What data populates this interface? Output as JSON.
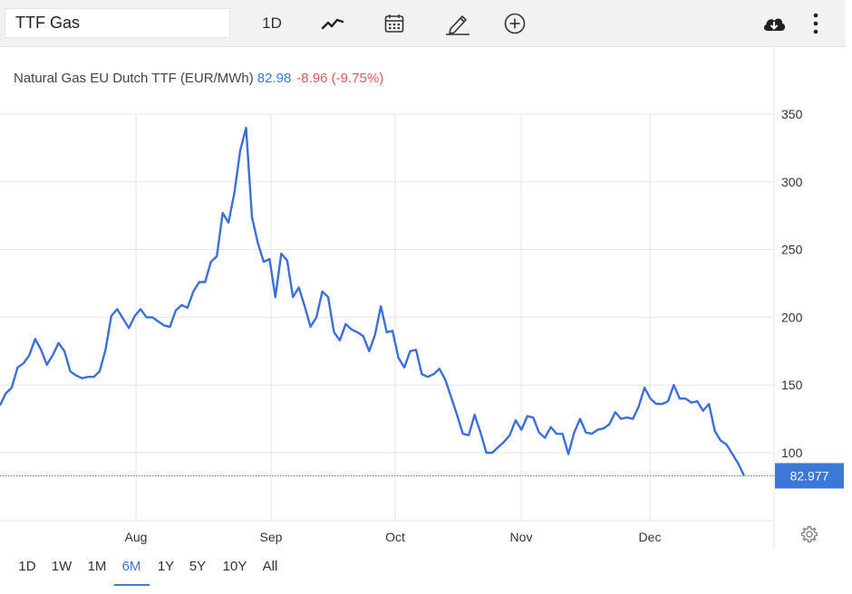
{
  "toolbar": {
    "symbol": "TTF Gas",
    "interval": "1D",
    "icons": [
      "line-chart-icon",
      "calendar-icon",
      "pencil-icon",
      "plus-circle-icon",
      "cloud-download-icon",
      "more-vertical-icon"
    ]
  },
  "legend": {
    "name": "Natural Gas EU Dutch TTF (EUR/MWh)",
    "last": "82.98",
    "change": "-8.96 (-9.75%)"
  },
  "colors": {
    "line": "#3b6fd9",
    "accent": "#3b78d8",
    "negative": "#e05a5a",
    "grid": "#e6e6e6"
  },
  "chart_data": {
    "type": "line",
    "title": "Natural Gas EU Dutch TTF (EUR/MWh)",
    "xlabel": "",
    "ylabel": "",
    "x_ticks": [
      "Aug",
      "Sep",
      "Oct",
      "Nov",
      "Dec"
    ],
    "y_ticks": [
      100,
      150,
      200,
      250,
      300,
      350
    ],
    "ylim": [
      50,
      383
    ],
    "grid": true,
    "last_value_label": "82.977",
    "series": [
      {
        "values": [
          135,
          144,
          148,
          163,
          166,
          172,
          184,
          176,
          165,
          172,
          181,
          175,
          160,
          157,
          155,
          156,
          156,
          160,
          176,
          201,
          206,
          199,
          192,
          201,
          206,
          200,
          200,
          197,
          194,
          193,
          205,
          209,
          207,
          219,
          226,
          226,
          241,
          245,
          277,
          270,
          292,
          323,
          340,
          274,
          255,
          241,
          243,
          215,
          247,
          242,
          215,
          222,
          208,
          193,
          200,
          219,
          215,
          189,
          183,
          195,
          191,
          189,
          186,
          175,
          187,
          208,
          189,
          190,
          170,
          163,
          175,
          176,
          158,
          156,
          158,
          162,
          154,
          141,
          128,
          114,
          113,
          128,
          115,
          100,
          100,
          104,
          108,
          113,
          124,
          117,
          127,
          126,
          115,
          111,
          119,
          114,
          114,
          99,
          115,
          125,
          115,
          114,
          117,
          118,
          121,
          130,
          125,
          126,
          125,
          134,
          148,
          140,
          136,
          136,
          138,
          150,
          140,
          140,
          137,
          138,
          131,
          136,
          116,
          109,
          106,
          99,
          92,
          83
        ]
      }
    ]
  },
  "range_buttons": [
    "1D",
    "1W",
    "1M",
    "6M",
    "1Y",
    "5Y",
    "10Y",
    "All"
  ],
  "active_range": "6M"
}
